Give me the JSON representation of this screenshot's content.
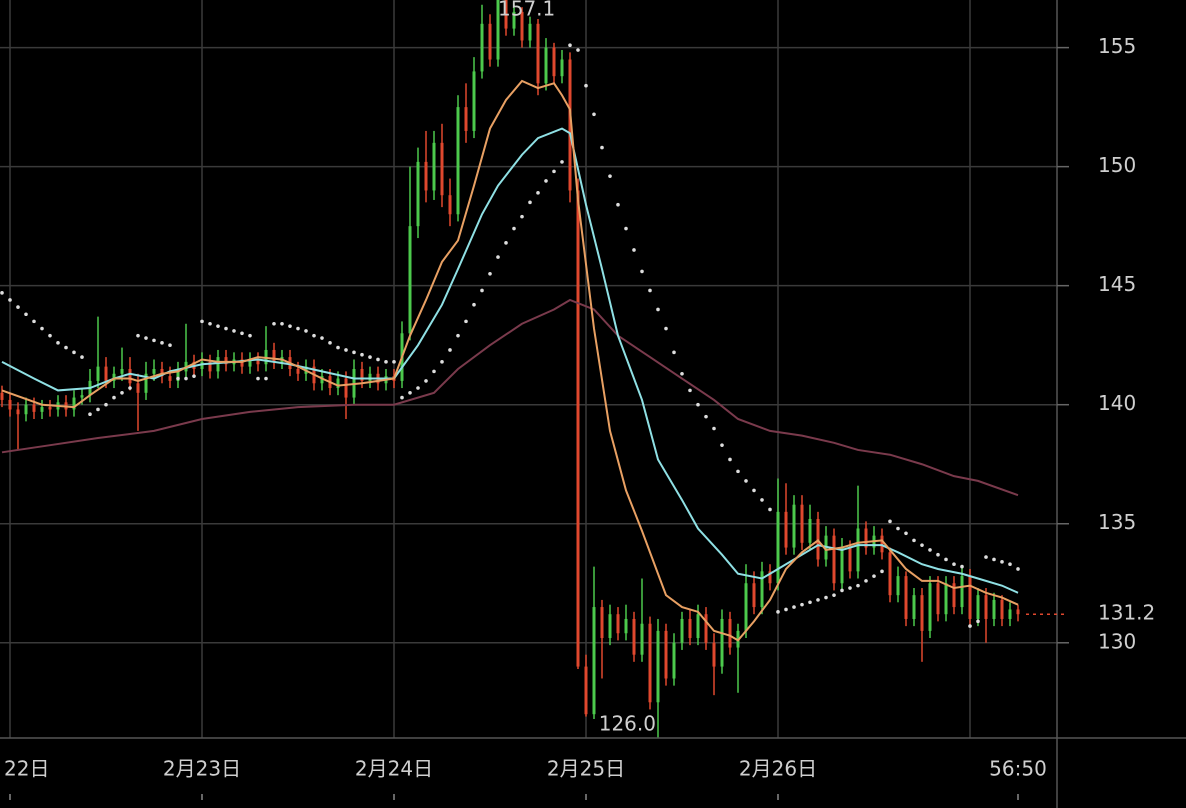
{
  "chart_data": {
    "type": "candlestick",
    "x": [
      -1,
      0,
      1,
      2,
      3,
      4,
      5,
      6,
      7,
      8,
      9,
      10,
      11,
      12,
      13,
      14,
      15,
      16,
      17,
      18,
      19,
      20,
      21,
      22,
      23,
      24,
      25,
      26,
      27,
      28,
      29,
      30,
      31,
      32,
      33,
      34,
      35,
      36,
      37,
      38,
      39,
      40,
      41,
      42,
      43,
      44,
      45,
      46,
      47,
      48,
      49,
      50,
      51,
      52,
      53,
      54,
      55,
      56,
      57,
      58,
      59,
      60,
      61,
      62,
      63,
      64,
      65,
      66,
      67,
      68,
      69,
      70,
      71,
      72,
      73,
      74,
      75,
      76,
      77,
      78,
      79,
      80,
      81,
      82,
      83,
      84,
      85,
      86,
      87,
      88,
      89,
      90,
      91,
      92,
      93,
      94,
      95,
      96,
      97,
      98,
      99,
      100,
      101,
      102,
      103,
      104,
      105,
      106,
      107,
      108,
      109,
      110,
      111,
      112,
      113,
      114,
      115,
      116,
      117,
      118,
      119,
      120,
      121,
      122,
      123,
      124,
      125,
      126
    ],
    "open": [
      140.5,
      140.2,
      139.8,
      139.6,
      140.0,
      139.7,
      139.9,
      139.8,
      140.1,
      139.8,
      140.3,
      140.4,
      141.0,
      141.6,
      141.0,
      141.3,
      141.5,
      140.9,
      140.5,
      141.3,
      141.5,
      141.2,
      141.0,
      141.4,
      141.8,
      141.5,
      141.8,
      141.4,
      142.0,
      141.7,
      141.9,
      141.6,
      141.9,
      141.7,
      142.3,
      141.8,
      142.0,
      141.5,
      141.3,
      141.6,
      140.9,
      141.2,
      140.7,
      141.1,
      140.3,
      141.5,
      141.0,
      141.3,
      140.9,
      141.2,
      141.0,
      143.0,
      147.5,
      150.2,
      149.0,
      151.0,
      148.8,
      148.0,
      152.5,
      151.5,
      154.0,
      156.0,
      154.5,
      157.0,
      155.8,
      156.5,
      155.3,
      156.0,
      153.5,
      155.0,
      153.8,
      154.5,
      149.0,
      129.0,
      127.0,
      131.5,
      130.2,
      131.2,
      130.4,
      131.0,
      129.5,
      130.8,
      127.5,
      130.5,
      128.5,
      130.0,
      131.0,
      130.2,
      131.2,
      130.0,
      129.0,
      131.0,
      129.8,
      130.5,
      132.5,
      131.5,
      133.0,
      132.5,
      135.5,
      134.0,
      135.8,
      134.2,
      135.2,
      133.5,
      134.5,
      132.5,
      134.0,
      133.0,
      134.8,
      134.0,
      134.5,
      133.8,
      132.0,
      132.8,
      131.0,
      132.0,
      130.5,
      132.5,
      131.2,
      132.5,
      131.5,
      132.8,
      131.0,
      132.0,
      131.0,
      131.8,
      131.0,
      131.4
    ],
    "high": [
      140.8,
      140.5,
      140.1,
      140.3,
      140.3,
      140.2,
      140.2,
      140.4,
      140.4,
      140.6,
      140.7,
      141.5,
      143.7,
      142.0,
      141.6,
      142.4,
      142.0,
      141.3,
      141.8,
      141.9,
      141.8,
      141.6,
      141.8,
      143.4,
      142.1,
      142.2,
      142.1,
      142.3,
      142.3,
      142.2,
      142.2,
      142.2,
      142.2,
      143.3,
      142.6,
      142.3,
      142.3,
      141.8,
      141.9,
      141.9,
      141.5,
      141.5,
      141.4,
      141.4,
      141.9,
      141.8,
      141.6,
      141.6,
      141.5,
      141.5,
      143.5,
      150.0,
      150.8,
      151.5,
      151.5,
      151.8,
      149.5,
      153.0,
      153.5,
      154.6,
      156.8,
      156.4,
      157.1,
      157.0,
      156.8,
      156.7,
      156.3,
      156.2,
      155.4,
      155.2,
      154.9,
      154.8,
      149.5,
      129.5,
      133.2,
      131.8,
      131.6,
      131.5,
      131.6,
      131.3,
      132.7,
      131.1,
      131.0,
      130.8,
      130.4,
      131.3,
      131.4,
      131.6,
      131.5,
      130.4,
      131.4,
      131.3,
      130.8,
      133.3,
      133.0,
      133.4,
      133.3,
      136.9,
      136.7,
      136.2,
      136.2,
      135.8,
      135.5,
      134.9,
      134.8,
      134.4,
      134.3,
      136.6,
      135.1,
      134.9,
      134.8,
      134.0,
      133.2,
      133.0,
      132.3,
      132.3,
      132.8,
      132.8,
      132.8,
      132.8,
      133.2,
      133.1,
      132.3,
      132.3,
      132.1,
      132.0,
      131.7,
      131.6
    ],
    "low": [
      139.9,
      139.5,
      138.1,
      139.3,
      139.4,
      139.4,
      139.5,
      139.5,
      139.5,
      139.5,
      140.0,
      140.1,
      140.7,
      140.7,
      140.7,
      141.0,
      140.6,
      138.9,
      140.2,
      141.0,
      140.9,
      140.7,
      140.7,
      141.1,
      141.2,
      141.2,
      141.1,
      141.1,
      141.4,
      141.4,
      141.3,
      141.3,
      141.4,
      141.4,
      141.5,
      141.5,
      141.2,
      141.0,
      141.0,
      140.6,
      140.6,
      140.4,
      140.4,
      139.4,
      140.0,
      140.7,
      140.7,
      140.6,
      140.6,
      140.7,
      140.7,
      142.7,
      147.0,
      148.5,
      148.6,
      148.3,
      147.5,
      147.7,
      151.0,
      151.2,
      153.7,
      154.2,
      154.2,
      155.5,
      155.5,
      155.0,
      155.0,
      153.0,
      153.2,
      153.5,
      153.5,
      148.5,
      128.9,
      126.9,
      126.8,
      128.5,
      129.9,
      130.1,
      130.1,
      129.2,
      129.2,
      127.2,
      126.0,
      128.2,
      128.2,
      129.7,
      129.9,
      129.9,
      129.7,
      127.8,
      128.7,
      129.5,
      127.9,
      130.2,
      131.2,
      131.2,
      132.2,
      132.2,
      133.7,
      133.7,
      133.9,
      133.9,
      133.2,
      133.2,
      132.2,
      132.2,
      132.7,
      132.7,
      133.7,
      133.7,
      133.5,
      131.7,
      131.7,
      130.7,
      130.7,
      129.2,
      130.2,
      130.9,
      130.9,
      131.2,
      131.2,
      130.7,
      130.7,
      130.0,
      130.7,
      130.7,
      130.7,
      130.9
    ],
    "close": [
      140.2,
      139.8,
      139.6,
      140.0,
      139.7,
      139.9,
      139.8,
      140.1,
      139.8,
      140.3,
      140.4,
      141.0,
      141.6,
      141.0,
      141.3,
      141.5,
      140.9,
      140.5,
      141.3,
      141.5,
      141.2,
      141.0,
      141.4,
      141.8,
      141.5,
      141.8,
      141.4,
      142.0,
      141.7,
      141.9,
      141.6,
      141.9,
      141.7,
      142.3,
      141.8,
      142.0,
      141.5,
      141.3,
      141.6,
      140.9,
      141.2,
      140.7,
      141.1,
      140.3,
      141.5,
      141.0,
      141.3,
      140.9,
      141.2,
      141.0,
      143.0,
      147.5,
      150.2,
      149.0,
      151.0,
      148.8,
      148.0,
      152.5,
      151.5,
      154.0,
      156.0,
      154.5,
      157.0,
      155.8,
      156.5,
      155.3,
      156.0,
      153.5,
      155.0,
      153.8,
      154.5,
      149.0,
      129.0,
      127.0,
      131.5,
      130.2,
      131.2,
      130.4,
      131.0,
      129.5,
      130.8,
      127.5,
      130.5,
      128.5,
      130.0,
      131.0,
      130.2,
      131.2,
      130.0,
      129.0,
      131.0,
      129.8,
      130.5,
      132.5,
      131.5,
      133.0,
      132.5,
      135.5,
      134.0,
      135.8,
      134.2,
      135.2,
      133.5,
      134.5,
      132.5,
      134.0,
      133.0,
      134.8,
      134.0,
      134.5,
      133.8,
      132.0,
      132.8,
      131.0,
      132.0,
      130.5,
      132.5,
      131.2,
      132.5,
      131.5,
      132.8,
      131.0,
      132.0,
      131.0,
      131.8,
      131.0,
      131.4,
      131.2
    ],
    "up_color": "#4cc94c",
    "down_color": "#e0482e",
    "overlays": [
      {
        "type": "line",
        "color": "#7a3a4c",
        "x": [
          -1,
          5,
          11,
          18,
          24,
          30,
          36,
          43,
          48,
          53,
          56,
          60,
          64,
          68,
          70,
          73,
          76,
          80,
          84,
          88,
          91,
          95,
          99,
          103,
          106,
          110,
          114,
          118,
          121,
          126
        ],
        "values": [
          138.0,
          138.3,
          138.6,
          138.9,
          139.4,
          139.7,
          139.9,
          140.0,
          140.0,
          140.5,
          141.5,
          142.5,
          143.4,
          144.0,
          144.4,
          144.0,
          142.9,
          142.0,
          141.1,
          140.2,
          139.4,
          138.9,
          138.7,
          138.4,
          138.1,
          137.9,
          137.5,
          137.0,
          136.8,
          136.2
        ]
      },
      {
        "type": "line",
        "color": "#8fe0e4",
        "x": [
          -1,
          3,
          6,
          10,
          13,
          15,
          18,
          20,
          24,
          28,
          31,
          35,
          39,
          43,
          48,
          51,
          54,
          56,
          59,
          61,
          64,
          66,
          69,
          70,
          72,
          74,
          76,
          79,
          81,
          84,
          86,
          89,
          91,
          94,
          96,
          99,
          101,
          104,
          106,
          109,
          111,
          114,
          116,
          119,
          121,
          124,
          126
        ],
        "values": [
          141.8,
          141.1,
          140.6,
          140.7,
          141.1,
          141.3,
          141.1,
          141.4,
          141.7,
          141.8,
          141.9,
          141.7,
          141.4,
          141.1,
          141.1,
          142.5,
          144.2,
          145.7,
          148.0,
          149.2,
          150.5,
          151.2,
          151.6,
          151.4,
          148.4,
          145.7,
          142.9,
          140.2,
          137.7,
          136.0,
          134.8,
          133.7,
          132.9,
          132.7,
          133.1,
          133.7,
          134.1,
          133.9,
          134.1,
          134.1,
          133.8,
          133.3,
          133.1,
          132.9,
          132.7,
          132.4,
          132.1
        ]
      },
      {
        "type": "line",
        "color": "#e8a063",
        "x": [
          -1,
          4,
          8,
          10,
          13,
          15,
          16,
          19,
          21,
          24,
          26,
          29,
          31,
          34,
          36,
          39,
          41,
          44,
          48,
          50,
          52,
          54,
          56,
          58,
          60,
          62,
          64,
          66,
          68,
          69,
          70,
          71,
          73,
          75,
          77,
          79,
          81,
          82,
          84,
          86,
          88,
          90,
          91,
          93,
          95,
          97,
          99,
          101,
          102,
          104,
          106,
          109,
          111,
          112,
          114,
          116,
          118,
          120,
          122,
          124,
          126
        ],
        "values": [
          140.6,
          140.0,
          139.9,
          140.4,
          141.1,
          141.1,
          141.0,
          141.3,
          141.4,
          141.9,
          141.8,
          141.8,
          142.0,
          141.9,
          141.6,
          141.1,
          140.8,
          140.9,
          141.1,
          142.9,
          144.4,
          146.0,
          146.9,
          149.2,
          151.6,
          152.8,
          153.6,
          153.3,
          153.5,
          153.0,
          152.4,
          148.6,
          143.2,
          138.9,
          136.4,
          134.7,
          132.9,
          132.0,
          131.5,
          131.3,
          130.5,
          130.3,
          130.1,
          130.9,
          131.8,
          133.1,
          133.8,
          134.3,
          133.9,
          134.0,
          134.2,
          134.3,
          133.5,
          133.1,
          132.6,
          132.6,
          132.3,
          132.4,
          132.1,
          131.9,
          131.6
        ]
      },
      {
        "type": "scatter",
        "color": "#dddddd",
        "values": [
          144.7,
          144.4,
          144.1,
          143.8,
          143.5,
          143.2,
          142.9,
          142.6,
          142.4,
          142.2,
          142.0,
          139.6,
          139.8,
          140.0,
          140.3,
          140.5,
          140.7,
          142.9,
          142.8,
          142.7,
          142.6,
          142.5,
          141.1,
          141.1,
          141.2,
          143.5,
          143.4,
          143.3,
          143.2,
          143.1,
          143.0,
          142.9,
          141.1,
          141.1,
          143.4,
          143.4,
          143.3,
          143.2,
          143.1,
          142.9,
          142.8,
          142.6,
          142.4,
          142.3,
          142.2,
          142.1,
          142.0,
          141.9,
          141.8,
          141.8,
          140.3,
          140.5,
          140.7,
          141.0,
          141.4,
          141.8,
          142.3,
          142.9,
          143.5,
          144.2,
          144.8,
          145.5,
          146.2,
          146.8,
          147.4,
          147.9,
          148.5,
          148.9,
          149.4,
          149.8,
          150.2,
          155.1,
          154.9,
          153.4,
          152.2,
          150.8,
          149.6,
          148.4,
          147.4,
          146.5,
          145.6,
          144.8,
          144.0,
          143.2,
          142.2,
          141.3,
          140.6,
          140.0,
          139.5,
          139.0,
          138.3,
          137.7,
          137.2,
          136.8,
          136.4,
          136.0,
          135.6,
          131.3,
          131.4,
          131.5,
          131.6,
          131.7,
          131.8,
          131.9,
          132.0,
          132.2,
          132.3,
          132.4,
          132.6,
          132.8,
          133.0,
          135.1,
          134.8,
          134.6,
          134.3,
          134.1,
          133.9,
          133.7,
          133.5,
          133.3,
          133.2,
          130.7,
          130.9,
          133.6,
          133.5,
          133.4,
          133.3,
          133.1
        ]
      }
    ],
    "xlim": [
      -1.25,
      130.875
    ],
    "ylim": [
      126,
      157
    ],
    "xticks": [
      {
        "value": 0,
        "label": "22日"
      },
      {
        "value": 24,
        "label": "2月23日"
      },
      {
        "value": 48,
        "label": "2月24日"
      },
      {
        "value": 72,
        "label": "2月25日"
      },
      {
        "value": 96,
        "label": "2月26日"
      },
      {
        "value": 120,
        "label": null
      }
    ],
    "yticks": [
      130,
      135,
      140,
      145,
      150,
      155
    ],
    "grid": true,
    "low_label": "126.0",
    "time_label": "56:50"
  }
}
